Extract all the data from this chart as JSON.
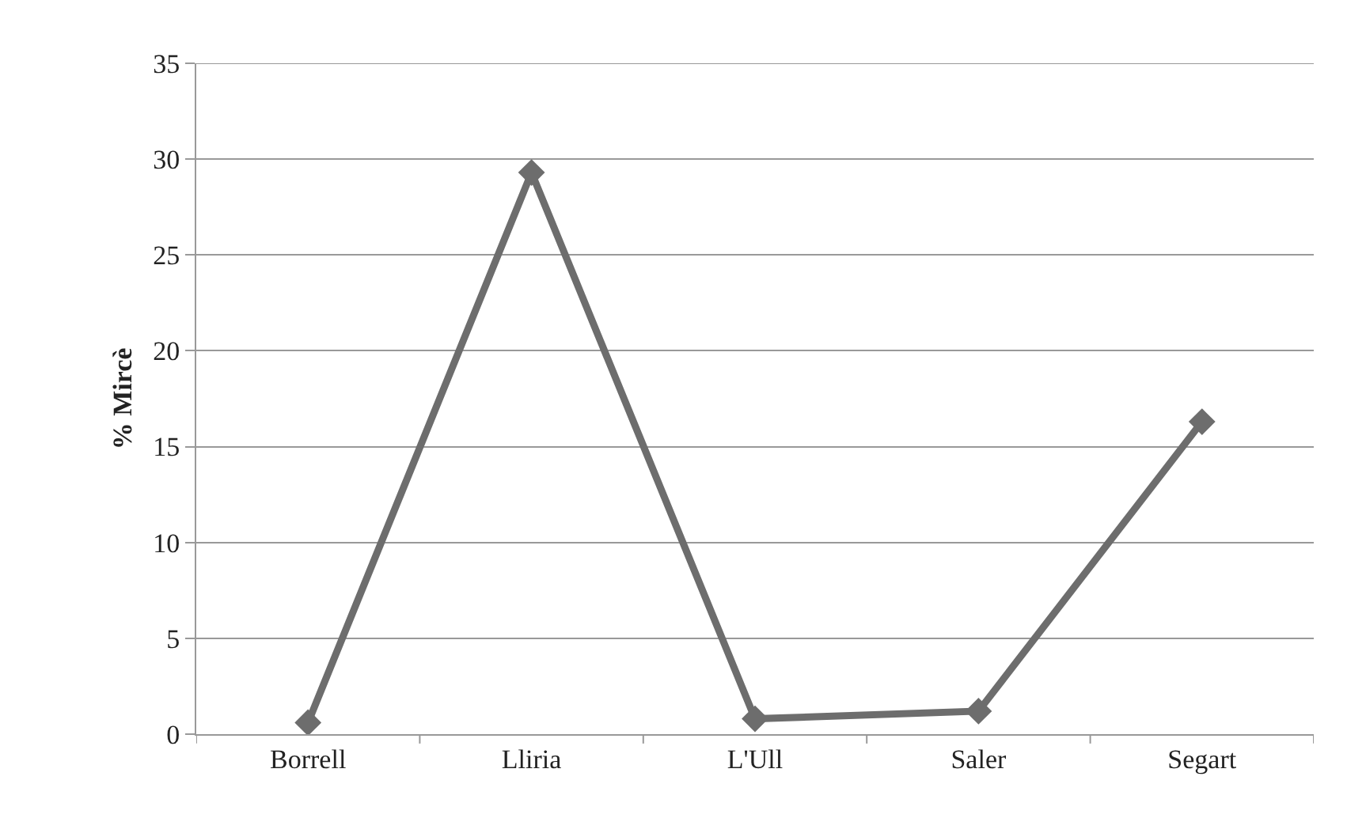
{
  "chart_data": {
    "type": "line",
    "ylabel": "% Mircè",
    "categories": [
      "Borrell",
      "Lliria",
      "L'Ull",
      "Saler",
      "Segart"
    ],
    "series": [
      {
        "color": "#6d6d6d",
        "values": [
          0.6,
          29.3,
          0.8,
          1.2,
          16.3
        ]
      }
    ],
    "ylim": [
      0,
      35
    ],
    "yticks": [
      0,
      5,
      10,
      15,
      20,
      25,
      30,
      35
    ],
    "grid": "y",
    "marker": "diamond",
    "line_style": "solid"
  }
}
